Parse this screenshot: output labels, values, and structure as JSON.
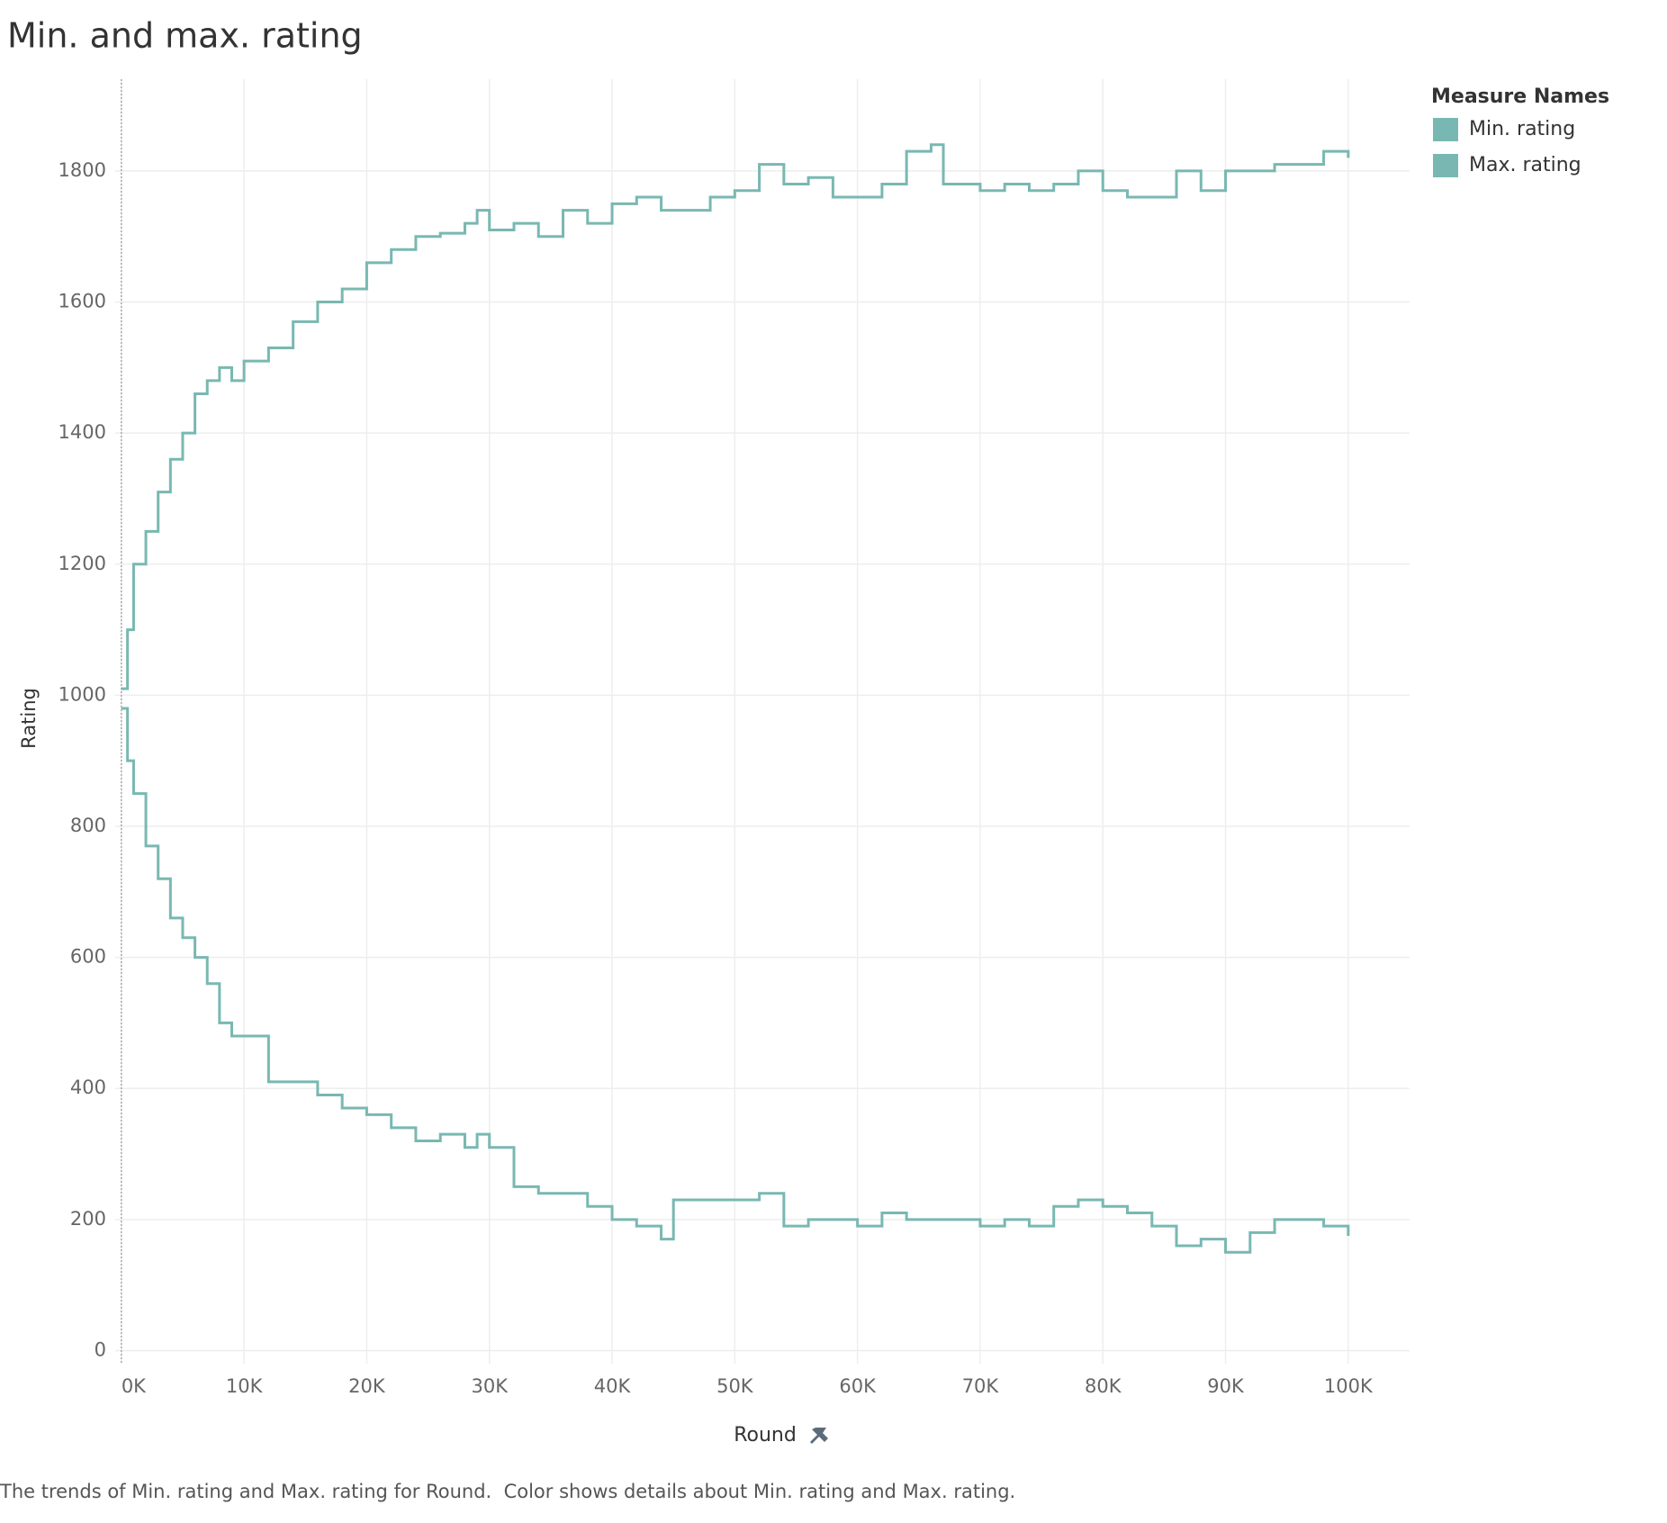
{
  "chart_data": {
    "type": "step-line",
    "title": "Min. and max. rating",
    "x_label": "Round",
    "y_label": "Rating",
    "legend_title": "Measure Names",
    "legend_position": "top-right",
    "caption": "The trends of Min. rating and Max. rating for Round.  Color shows details about Min. rating and Max. rating.",
    "x": [
      0,
      500,
      1000,
      2000,
      3000,
      4000,
      5000,
      6000,
      7000,
      8000,
      9000,
      10000,
      12000,
      14000,
      16000,
      18000,
      20000,
      22000,
      24000,
      26000,
      28000,
      29000,
      30000,
      32000,
      34000,
      36000,
      38000,
      40000,
      42000,
      44000,
      45000,
      48000,
      50000,
      52000,
      54000,
      56000,
      58000,
      60000,
      62000,
      64000,
      66000,
      67000,
      70000,
      72000,
      74000,
      76000,
      78000,
      80000,
      82000,
      84000,
      86000,
      88000,
      90000,
      92000,
      94000,
      96000,
      98000,
      100000
    ],
    "series": [
      {
        "name": "Min. rating",
        "color": "#79b8b2",
        "values": [
          980,
          900,
          850,
          770,
          720,
          660,
          630,
          600,
          560,
          500,
          480,
          480,
          410,
          410,
          390,
          370,
          360,
          340,
          320,
          330,
          310,
          330,
          310,
          250,
          240,
          240,
          220,
          200,
          190,
          170,
          230,
          230,
          230,
          240,
          190,
          200,
          200,
          190,
          210,
          200,
          200,
          200,
          190,
          200,
          190,
          220,
          230,
          220,
          210,
          190,
          160,
          170,
          150,
          180,
          200,
          200,
          190,
          175
        ]
      },
      {
        "name": "Max. rating",
        "color": "#79b8b2",
        "values": [
          1010,
          1100,
          1200,
          1250,
          1310,
          1360,
          1400,
          1460,
          1480,
          1500,
          1480,
          1510,
          1530,
          1570,
          1600,
          1620,
          1660,
          1680,
          1700,
          1705,
          1720,
          1740,
          1710,
          1720,
          1700,
          1740,
          1720,
          1750,
          1760,
          1740,
          1740,
          1760,
          1770,
          1810,
          1780,
          1790,
          1760,
          1760,
          1780,
          1830,
          1840,
          1780,
          1770,
          1780,
          1770,
          1780,
          1800,
          1770,
          1760,
          1760,
          1800,
          1770,
          1800,
          1800,
          1810,
          1810,
          1830,
          1820
        ]
      }
    ],
    "xlim": [
      -500,
      105000
    ],
    "xticks": [
      {
        "value": 0,
        "label": "0K"
      },
      {
        "value": 10000,
        "label": "10K"
      },
      {
        "value": 20000,
        "label": "20K"
      },
      {
        "value": 30000,
        "label": "30K"
      },
      {
        "value": 40000,
        "label": "40K"
      },
      {
        "value": 50000,
        "label": "50K"
      },
      {
        "value": 60000,
        "label": "60K"
      },
      {
        "value": 70000,
        "label": "70K"
      },
      {
        "value": 80000,
        "label": "80K"
      },
      {
        "value": 90000,
        "label": "90K"
      },
      {
        "value": 100000,
        "label": "100K"
      }
    ],
    "ylim": [
      -20,
      1940
    ],
    "yticks": [
      0,
      200,
      400,
      600,
      800,
      1000,
      1200,
      1400,
      1600,
      1800
    ],
    "grid": true
  }
}
